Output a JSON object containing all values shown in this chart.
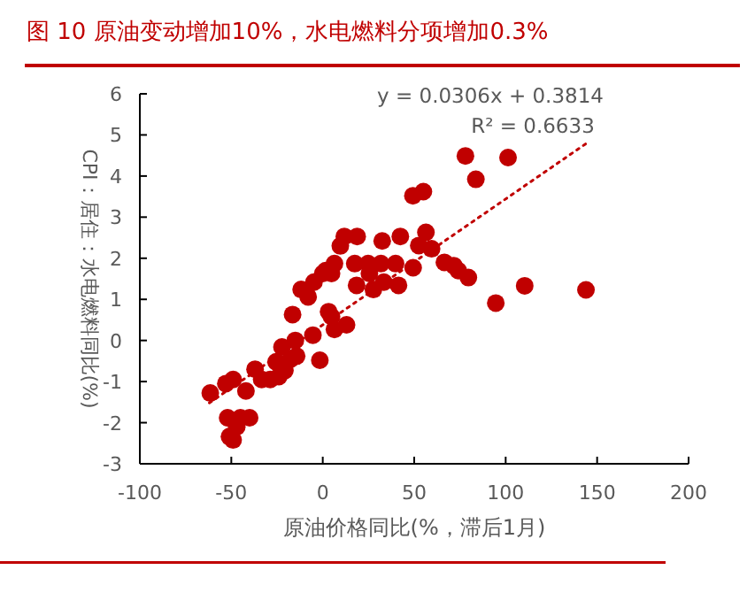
{
  "chart_data": {
    "type": "scatter",
    "title": "图 10 原油变动增加10%，水电燃料分项增加0.3%",
    "xlabel": "原油价格同比(%，滞后1月)",
    "ylabel": "CPI：居住：水电燃料同比(%)",
    "xlim": [
      -100,
      200
    ],
    "xticks": [
      -100,
      -50,
      0,
      50,
      100,
      150,
      200
    ],
    "ylim": [
      -3,
      6
    ],
    "yticks": [
      -3,
      -2,
      -1,
      0,
      1,
      2,
      3,
      4,
      5,
      6
    ],
    "grid": false,
    "annotations": [
      "y = 0.0306x + 0.3814",
      "R² = 0.6633"
    ],
    "series": [
      {
        "color": "#c00000",
        "marker": "circle",
        "x": [
          -61.5,
          -53,
          -49,
          -42,
          -52,
          -51,
          -49,
          -45,
          -40,
          -47,
          -37,
          -33.4,
          -28.7,
          -24,
          -25.5,
          -20.7,
          -17.5,
          -22.3,
          -14.3,
          -16.5,
          -15,
          -11.8,
          -8,
          -4.8,
          0,
          1.6,
          6.4,
          4.8,
          -5.4,
          -1.6,
          3.2,
          4.8,
          6.4,
          13,
          9.6,
          11.8,
          18.8,
          17.5,
          18.5,
          24.8,
          25.5,
          32.5,
          31.8,
          27.7,
          33.4,
          39.8,
          41.4,
          42.4,
          49.4,
          49.3,
          55,
          56.4,
          52.5,
          59.5,
          66.5,
          71.7,
          74.1,
          79.6,
          78,
          101.3,
          83.7,
          94.6,
          110.4,
          143.9
        ],
        "values": [
          -1.28,
          -1.05,
          -0.95,
          -1.23,
          -1.88,
          -2.34,
          -2.42,
          -1.88,
          -1.88,
          -2.1,
          -0.7,
          -0.95,
          -0.95,
          -0.88,
          -0.52,
          -0.73,
          -0.45,
          -0.16,
          -0.38,
          0.63,
          0,
          1.24,
          1.06,
          1.42,
          1.63,
          1.7,
          1.87,
          1.63,
          0.13,
          -0.48,
          0.7,
          0.58,
          0.27,
          0.38,
          2.3,
          2.53,
          2.53,
          1.87,
          1.34,
          1.87,
          1.63,
          2.42,
          1.87,
          1.24,
          1.42,
          1.87,
          1.34,
          2.53,
          1.77,
          3.52,
          3.62,
          2.63,
          2.31,
          2.23,
          1.9,
          1.82,
          1.7,
          1.53,
          4.49,
          4.45,
          3.92,
          0.91,
          1.33,
          1.23
        ]
      },
      {
        "color": "#c00000",
        "type": "line",
        "line_style": "dotted",
        "marker": "none",
        "x": [
          -62,
          144
        ],
        "values": [
          -1.52,
          4.79
        ]
      }
    ]
  }
}
